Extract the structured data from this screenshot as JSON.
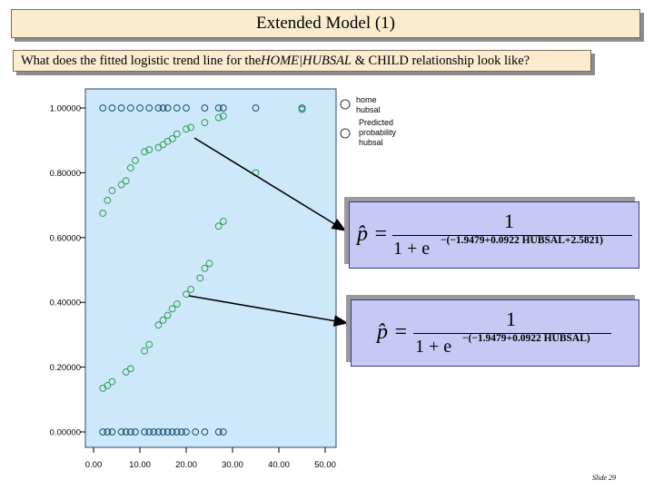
{
  "slide": {
    "title": "Extended Model (1)",
    "question_prefix": "What does the fitted logistic trend line for the ",
    "question_italic": "HOME|HUBSAL",
    "question_suffix": " & CHILD relationship look like?",
    "slide_number": "Slide 29"
  },
  "formulas": {
    "top": {
      "lhs": "p̂ =",
      "numerator": "1",
      "denominator_base": "1 + e",
      "exponent": "−(−1.9479+0.0922 HUBSAL+2.5821)"
    },
    "bottom": {
      "lhs": "p̂ =",
      "numerator": "1",
      "denominator_base": "1 + e",
      "exponent": "−(−1.9479+0.0922 HUBSAL)"
    }
  },
  "colors": {
    "plot_bg": "#cde8fb",
    "observed": "#1a4a6a",
    "predicted": "#2e9e4e",
    "arrow": "#000000"
  },
  "chart_data": {
    "type": "scatter",
    "xlim": [
      0,
      50
    ],
    "ylim": [
      0,
      1.05
    ],
    "x_ticks": [
      0,
      10,
      20,
      30,
      40,
      50
    ],
    "x_tick_labels": [
      "0.00",
      "10.00",
      "20.00",
      "30.00",
      "40.00",
      "50.00"
    ],
    "y_ticks": [
      0,
      0.2,
      0.4,
      0.6,
      0.8,
      1.0
    ],
    "y_tick_labels": [
      "0.00000",
      "0.20000",
      "0.40000",
      "0.60000",
      "0.80000",
      "1.00000"
    ],
    "legend": [
      "home hubsal",
      "Predicted probability hubsal"
    ],
    "series": [
      {
        "name": "home hubsal",
        "x": [
          2,
          4,
          6,
          8,
          10,
          12,
          14,
          15,
          16,
          18,
          20,
          24,
          27,
          28,
          35,
          45,
          2,
          3,
          4,
          6,
          7,
          8,
          9,
          11,
          12,
          13,
          14,
          15,
          16,
          17,
          18,
          19,
          20,
          22,
          24,
          27,
          28
        ],
        "y": [
          1,
          1,
          1,
          1,
          1,
          1,
          1,
          1,
          1,
          1,
          1,
          1,
          1,
          1,
          1,
          1,
          0,
          0,
          0,
          0,
          0,
          0,
          0,
          0,
          0,
          0,
          0,
          0,
          0,
          0,
          0,
          0,
          0,
          0,
          0,
          0,
          0
        ]
      },
      {
        "name": "Predicted probability hubsal",
        "x": [
          2,
          3,
          4,
          6,
          7,
          8,
          9,
          11,
          12,
          14,
          15,
          16,
          17,
          18,
          20,
          21,
          24,
          27,
          28,
          35,
          45
        ],
        "y": [
          0.675,
          0.715,
          0.745,
          0.763,
          0.775,
          0.815,
          0.838,
          0.865,
          0.871,
          0.878,
          0.887,
          0.897,
          0.905,
          0.92,
          0.935,
          0.94,
          0.955,
          0.97,
          0.975,
          0.8,
          0.995
        ]
      },
      {
        "name": "",
        "x": [
          2,
          3,
          4,
          7,
          8,
          11,
          12,
          14,
          15,
          16,
          17,
          18,
          20,
          21,
          23,
          24,
          25,
          27,
          28
        ],
        "y": [
          0.135,
          0.143,
          0.155,
          0.185,
          0.195,
          0.25,
          0.27,
          0.33,
          0.345,
          0.36,
          0.38,
          0.395,
          0.425,
          0.44,
          0.475,
          0.505,
          0.52,
          0.635,
          0.65
        ]
      }
    ]
  }
}
